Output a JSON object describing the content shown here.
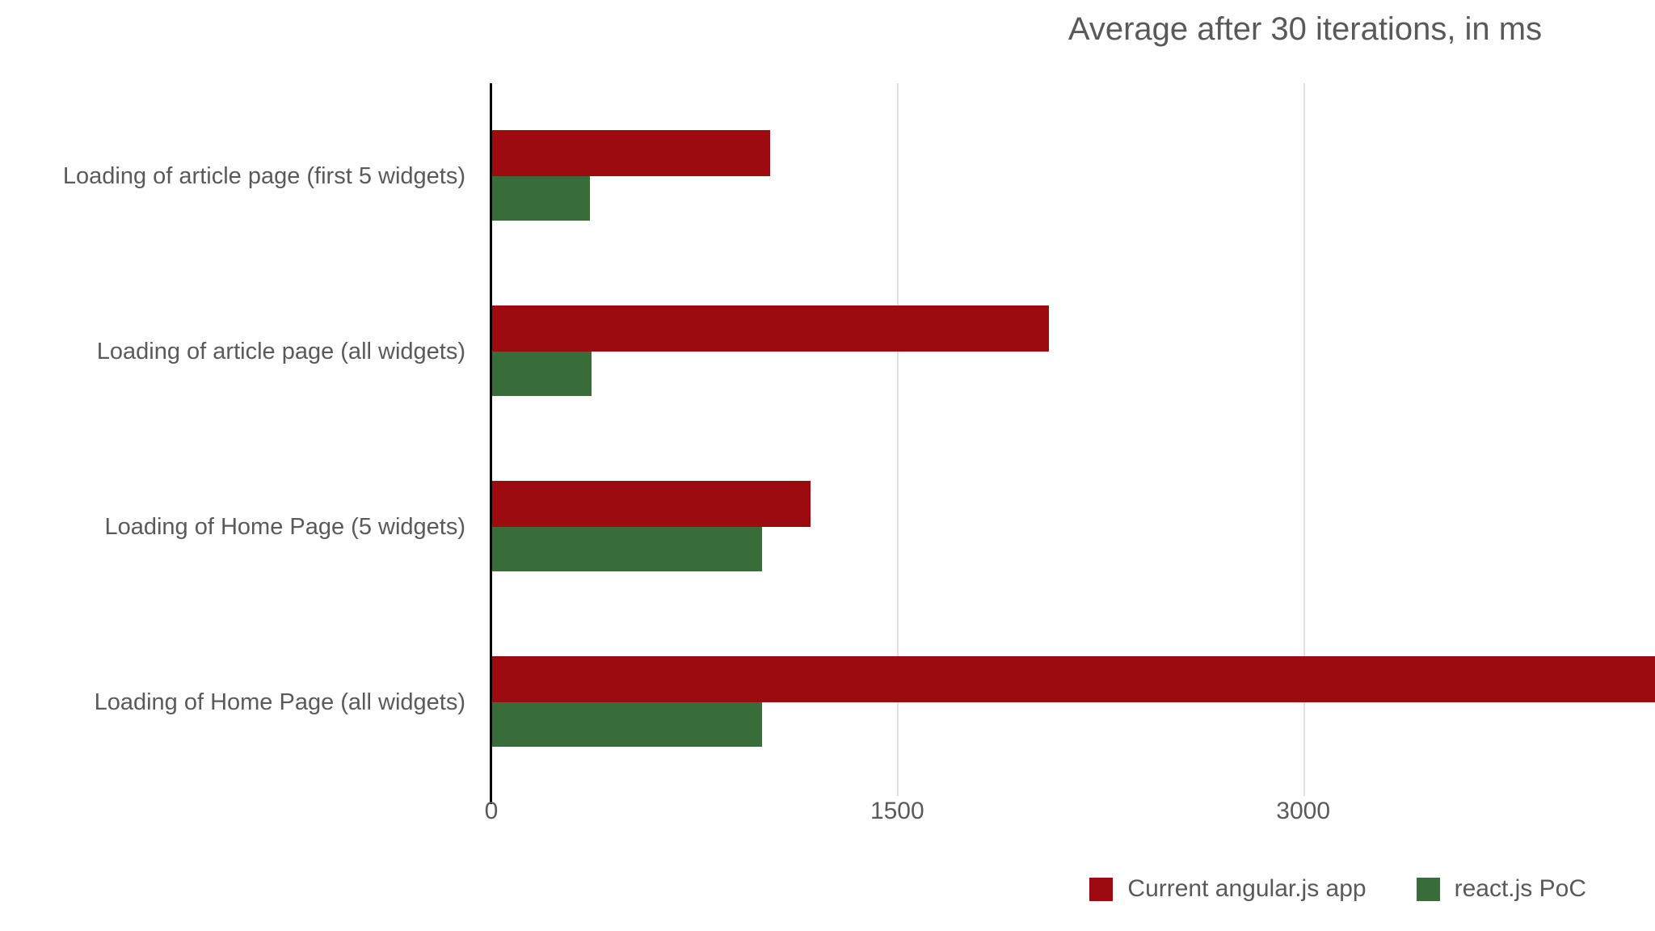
{
  "chart_data": {
    "type": "bar",
    "orientation": "horizontal",
    "title": "Average after 30 iterations, in ms",
    "unit": "ms",
    "categories": [
      "Loading of article page (first 5 widgets)",
      "Loading of article page (all widgets)",
      "Loading of Home Page (5 widgets)",
      "Loading of Home Page (all widgets)"
    ],
    "series": [
      {
        "name": "Current angular.js app",
        "color": "#9c0b0e",
        "values": [
          1030,
          2060,
          1180,
          4500
        ]
      },
      {
        "name": "react.js PoC",
        "color": "#386d3a",
        "values": [
          365,
          370,
          1000,
          1000
        ]
      }
    ],
    "clipped_bars": [
      {
        "series": "Current angular.js app",
        "category": "Loading of Home Page (all widgets)",
        "note": "bar runs past the right edge of the visible plot (> ~4300 ms); value is an estimate"
      }
    ],
    "x_ticks": [
      0,
      1500,
      3000
    ],
    "xlim": [
      0,
      4300
    ],
    "grid": "vertical light-gray lines at labeled ticks",
    "legend_position": "bottom-right",
    "colors": {
      "background": "#ffffff",
      "axis_line": "#000000",
      "gridline": "#e0e0e0",
      "text": "#58595b"
    }
  }
}
